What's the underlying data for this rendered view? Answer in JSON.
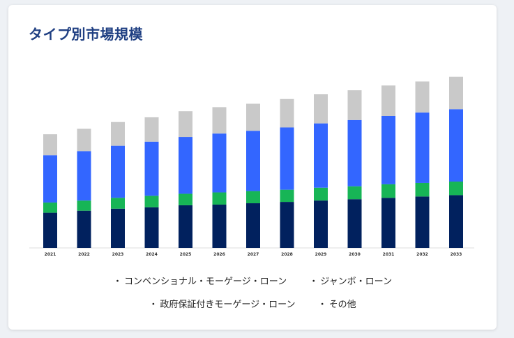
{
  "title": "タイプ別市場規模",
  "colors": {
    "conventional": "#01215e",
    "jumbo": "#17b556",
    "government": "#3366ff",
    "other": "#c9c9c9"
  },
  "legend": [
    {
      "label": "コンベンショナル・モーゲージ・ローン"
    },
    {
      "label": "ジャンボ・ローン"
    },
    {
      "label": "政府保証付きモーゲージ・ローン"
    },
    {
      "label": "その他"
    }
  ],
  "chart_data": {
    "type": "bar",
    "stacked": true,
    "categories": [
      "2021",
      "2022",
      "2023",
      "2024",
      "2025",
      "2026",
      "2027",
      "2028",
      "2029",
      "2030",
      "2031",
      "2032",
      "2033"
    ],
    "series": [
      {
        "name": "コンベンショナル・モーゲージ・ローン",
        "values": [
          52,
          55,
          58,
          60,
          63,
          64,
          66,
          68,
          70,
          72,
          74,
          76,
          78
        ]
      },
      {
        "name": "ジャンボ・ローン",
        "values": [
          15,
          15,
          16,
          17,
          17,
          18,
          18,
          18,
          19,
          19,
          20,
          20,
          20
        ]
      },
      {
        "name": "政府保証付きモーゲージ・ローン",
        "values": [
          70,
          73,
          77,
          80,
          84,
          87,
          89,
          92,
          95,
          98,
          101,
          104,
          107
        ]
      },
      {
        "name": "その他",
        "values": [
          31,
          33,
          35,
          36,
          38,
          39,
          40,
          42,
          43,
          44,
          45,
          46,
          48
        ]
      }
    ],
    "ylim": [
      0,
      260
    ],
    "grid": false
  }
}
